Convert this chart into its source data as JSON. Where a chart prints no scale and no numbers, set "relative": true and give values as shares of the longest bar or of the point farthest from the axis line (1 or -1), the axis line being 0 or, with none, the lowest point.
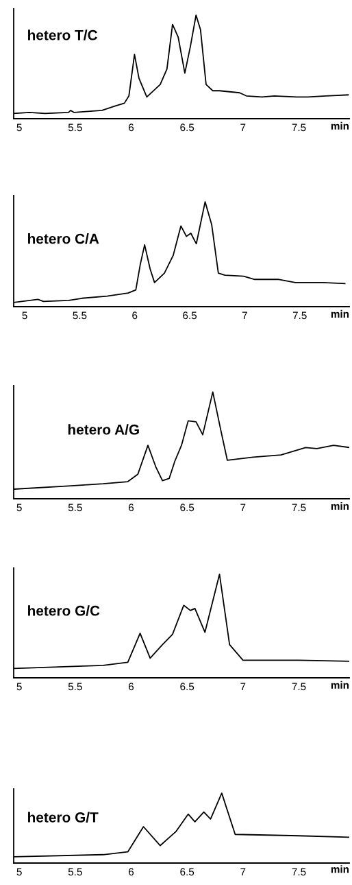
{
  "chart_data": [
    {
      "type": "line",
      "title": "hetero T/C",
      "xlabel": "min",
      "relative": true,
      "tick_labels": "x",
      "xlim": [
        4.95,
        7.95
      ],
      "xticks": [
        5,
        5.5,
        6,
        6.5,
        7,
        7.5
      ],
      "series": [
        {
          "color": "#000000",
          "x": [
            4.95,
            5.09,
            5.23,
            5.44,
            5.46,
            5.49,
            5.74,
            5.85,
            5.94,
            5.98,
            6.03,
            6.07,
            6.14,
            6.26,
            6.32,
            6.37,
            6.42,
            6.48,
            6.53,
            6.58,
            6.62,
            6.67,
            6.73,
            6.79,
            6.97,
            7.03,
            7.17,
            7.28,
            7.48,
            7.58,
            7.74,
            7.94
          ],
          "values": [
            0.05,
            0.06,
            0.05,
            0.06,
            0.08,
            0.06,
            0.08,
            0.12,
            0.15,
            0.22,
            0.62,
            0.39,
            0.21,
            0.33,
            0.48,
            0.91,
            0.79,
            0.44,
            0.7,
            1.0,
            0.86,
            0.33,
            0.27,
            0.27,
            0.25,
            0.22,
            0.21,
            0.22,
            0.21,
            0.21,
            0.22,
            0.23
          ]
        }
      ]
    },
    {
      "type": "line",
      "title": "hetero C/A",
      "xlabel": "min",
      "relative": true,
      "tick_labels": "x",
      "xlim": [
        4.9,
        7.95
      ],
      "xticks": [
        5,
        5.5,
        6,
        6.5,
        7,
        7.5
      ],
      "series": [
        {
          "color": "#000000",
          "x": [
            4.9,
            5.12,
            5.17,
            5.4,
            5.52,
            5.75,
            5.94,
            6.01,
            6.05,
            6.09,
            6.14,
            6.18,
            6.27,
            6.35,
            6.42,
            6.47,
            6.51,
            6.56,
            6.64,
            6.7,
            6.76,
            6.82,
            6.99,
            7.09,
            7.31,
            7.46,
            7.71,
            7.91
          ],
          "values": [
            0.04,
            0.07,
            0.05,
            0.06,
            0.08,
            0.1,
            0.13,
            0.16,
            0.4,
            0.59,
            0.36,
            0.23,
            0.32,
            0.49,
            0.77,
            0.67,
            0.7,
            0.6,
            1.0,
            0.78,
            0.32,
            0.3,
            0.29,
            0.26,
            0.26,
            0.23,
            0.23,
            0.22
          ]
        }
      ]
    },
    {
      "type": "line",
      "title": "hetero A/G",
      "xlabel": "min",
      "relative": true,
      "tick_labels": "x",
      "xlim": [
        4.95,
        7.95
      ],
      "xticks": [
        5,
        5.5,
        6,
        6.5,
        7,
        7.5
      ],
      "series": [
        {
          "color": "#000000",
          "x": [
            4.95,
            5.44,
            5.75,
            5.97,
            6.06,
            6.15,
            6.22,
            6.28,
            6.34,
            6.39,
            6.45,
            6.51,
            6.58,
            6.64,
            6.73,
            6.8,
            6.86,
            7.09,
            7.34,
            7.56,
            7.66,
            7.81,
            7.95
          ],
          "values": [
            0.09,
            0.12,
            0.14,
            0.16,
            0.23,
            0.5,
            0.3,
            0.17,
            0.19,
            0.35,
            0.5,
            0.73,
            0.72,
            0.6,
            1.0,
            0.65,
            0.36,
            0.39,
            0.41,
            0.48,
            0.47,
            0.5,
            0.48
          ]
        }
      ]
    },
    {
      "type": "line",
      "title": "hetero G/C",
      "xlabel": "min",
      "relative": true,
      "tick_labels": "x",
      "xlim": [
        4.95,
        7.95
      ],
      "xticks": [
        5,
        5.5,
        6,
        6.5,
        7,
        7.5
      ],
      "series": [
        {
          "color": "#000000",
          "x": [
            4.95,
            5.75,
            5.97,
            6.08,
            6.17,
            6.28,
            6.37,
            6.47,
            6.53,
            6.57,
            6.66,
            6.79,
            6.88,
            7.0,
            7.5,
            7.95
          ],
          "values": [
            0.09,
            0.12,
            0.15,
            0.43,
            0.19,
            0.32,
            0.42,
            0.7,
            0.65,
            0.67,
            0.44,
            1.0,
            0.32,
            0.17,
            0.17,
            0.16
          ]
        }
      ]
    },
    {
      "type": "line",
      "title": "hetero G/T",
      "xlabel": "min",
      "relative": true,
      "tick_labels": "x",
      "xlim": [
        4.95,
        7.95
      ],
      "xticks": [
        5,
        5.5,
        6,
        6.5,
        7,
        7.5
      ],
      "series": [
        {
          "color": "#000000",
          "x": [
            4.95,
            5.75,
            5.97,
            6.11,
            6.26,
            6.4,
            6.51,
            6.57,
            6.65,
            6.71,
            6.81,
            6.93,
            7.5,
            7.95
          ],
          "values": [
            0.09,
            0.12,
            0.16,
            0.52,
            0.25,
            0.45,
            0.7,
            0.59,
            0.73,
            0.63,
            1.0,
            0.41,
            0.39,
            0.37
          ]
        }
      ]
    }
  ]
}
